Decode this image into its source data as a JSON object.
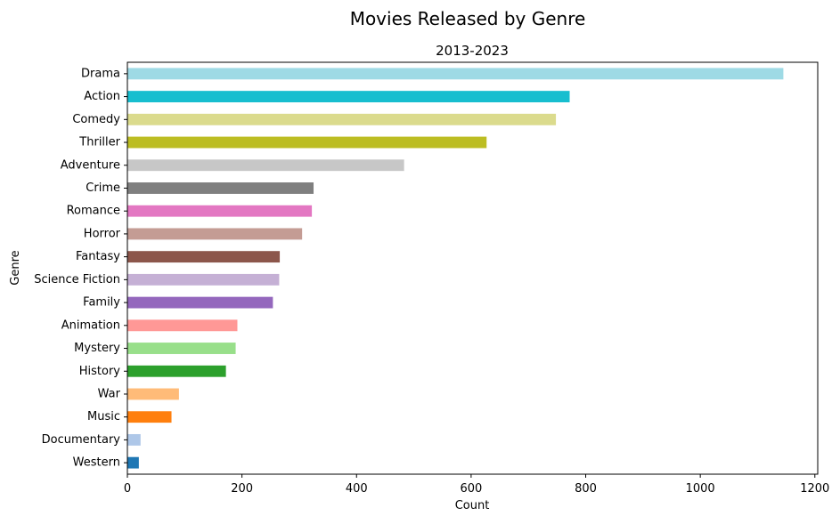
{
  "chart_data": {
    "type": "bar",
    "orientation": "horizontal",
    "title": "Movies Released by Genre",
    "subtitle": "2013-2023",
    "xlabel": "Count",
    "ylabel": "Genre",
    "xlim": [
      0,
      1205
    ],
    "xticks": [
      0,
      200,
      400,
      600,
      800,
      1000,
      1200
    ],
    "grid": false,
    "categories": [
      "Drama",
      "Action",
      "Comedy",
      "Thriller",
      "Adventure",
      "Crime",
      "Romance",
      "Horror",
      "Fantasy",
      "Science Fiction",
      "Family",
      "Animation",
      "Mystery",
      "History",
      "War",
      "Music",
      "Documentary",
      "Western"
    ],
    "values": [
      1145,
      772,
      748,
      627,
      483,
      325,
      322,
      305,
      266,
      265,
      254,
      192,
      189,
      172,
      90,
      77,
      23,
      20
    ],
    "colors": [
      "#9edae5",
      "#17becf",
      "#dbdb8d",
      "#bcbd22",
      "#c7c7c7",
      "#7f7f7f",
      "#e377c2",
      "#c49c94",
      "#8c564b",
      "#c5b0d5",
      "#9467bd",
      "#ff9896",
      "#98df8a",
      "#2ca02c",
      "#ffbb78",
      "#ff7f0e",
      "#aec7e8",
      "#1f77b4"
    ]
  }
}
